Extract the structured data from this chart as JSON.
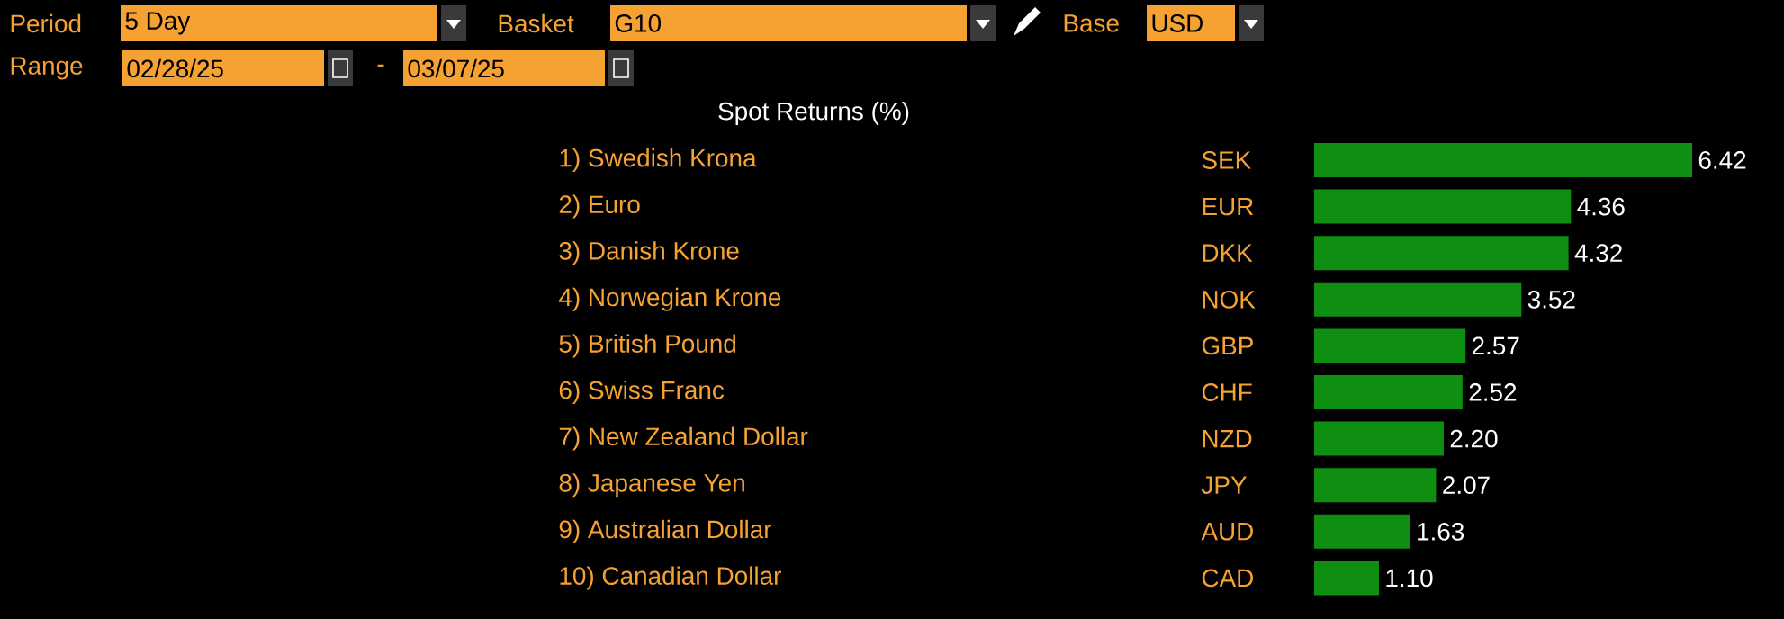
{
  "chart_data": {
    "type": "bar",
    "orientation": "horizontal",
    "title": "Spot Returns (%)",
    "categories": [
      "1) Swedish Krona",
      "2) Euro",
      "3) Danish Krone",
      "4) Norwegian Krone",
      "5) British Pound",
      "6) Swiss Franc",
      "7) New Zealand Dollar",
      "8) Japanese Yen",
      "9) Australian Dollar",
      "10) Canadian Dollar"
    ],
    "y2_categories": [
      "SEK",
      "EUR",
      "DKK",
      "NOK",
      "GBP",
      "CHF",
      "NZD",
      "JPY",
      "AUD",
      "CAD"
    ],
    "values": [
      6.42,
      4.36,
      4.32,
      3.52,
      2.57,
      2.52,
      2.2,
      2.07,
      1.63,
      1.1
    ],
    "color": "#0f8f12",
    "value_labels": [
      "6.42",
      "4.36",
      "4.32",
      "3.52",
      "2.57",
      "2.52",
      "2.20",
      "2.07",
      "1.63",
      "1.10"
    ],
    "annotations": [
      "Period",
      "5 Day",
      "Basket",
      "G10",
      "Base",
      "USD",
      "Range",
      "02/28/25",
      "-",
      "03/07/25"
    ]
  }
}
